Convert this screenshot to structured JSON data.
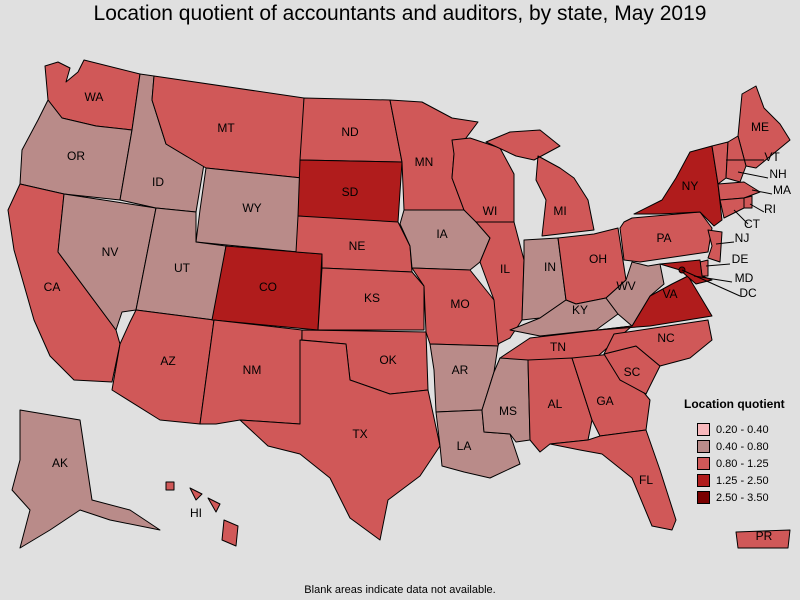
{
  "title": "Location quotient of accountants and auditors, by state, May 2019",
  "legend": {
    "title": "Location quotient",
    "bins": [
      {
        "label": "0.20 - 0.40",
        "color": "#f8b8bc"
      },
      {
        "label": "0.40 - 0.80",
        "color": "#b98b89"
      },
      {
        "label": "0.80 - 1.25",
        "color": "#d05858"
      },
      {
        "label": "1.25 - 2.50",
        "color": "#b01c1c"
      },
      {
        "label": "2.50 - 3.50",
        "color": "#7a0000"
      }
    ]
  },
  "footnote": "Blank areas indicate data not available.",
  "states": {
    "WA": "0.80 - 1.25",
    "OR": "0.40 - 0.80",
    "CA": "0.80 - 1.25",
    "NV": "0.40 - 0.80",
    "ID": "0.40 - 0.80",
    "MT": "0.80 - 1.25",
    "WY": "0.40 - 0.80",
    "UT": "0.40 - 0.80",
    "AZ": "0.80 - 1.25",
    "CO": "1.25 - 2.50",
    "NM": "0.80 - 1.25",
    "ND": "0.80 - 1.25",
    "SD": "1.25 - 2.50",
    "NE": "0.80 - 1.25",
    "KS": "0.80 - 1.25",
    "OK": "0.80 - 1.25",
    "TX": "0.80 - 1.25",
    "MN": "0.80 - 1.25",
    "IA": "0.40 - 0.80",
    "MO": "0.80 - 1.25",
    "AR": "0.40 - 0.80",
    "LA": "0.40 - 0.80",
    "WI": "0.80 - 1.25",
    "IL": "0.80 - 1.25",
    "MI": "0.80 - 1.25",
    "IN": "0.40 - 0.80",
    "OH": "0.80 - 1.25",
    "KY": "0.40 - 0.80",
    "TN": "0.80 - 1.25",
    "MS": "0.40 - 0.80",
    "AL": "0.80 - 1.25",
    "GA": "0.80 - 1.25",
    "FL": "0.80 - 1.25",
    "SC": "0.80 - 1.25",
    "NC": "0.80 - 1.25",
    "VA": "1.25 - 2.50",
    "WV": "0.40 - 0.80",
    "PA": "0.80 - 1.25",
    "NY": "1.25 - 2.50",
    "ME": "0.80 - 1.25",
    "VT": "0.80 - 1.25",
    "NH": "0.80 - 1.25",
    "MA": "0.80 - 1.25",
    "RI": "0.80 - 1.25",
    "CT": "0.80 - 1.25",
    "NJ": "0.80 - 1.25",
    "DE": "0.80 - 1.25",
    "MD": "1.25 - 2.50",
    "DC": "2.50 - 3.50",
    "AK": "0.40 - 0.80",
    "HI": "0.80 - 1.25",
    "PR": "0.80 - 1.25"
  }
}
